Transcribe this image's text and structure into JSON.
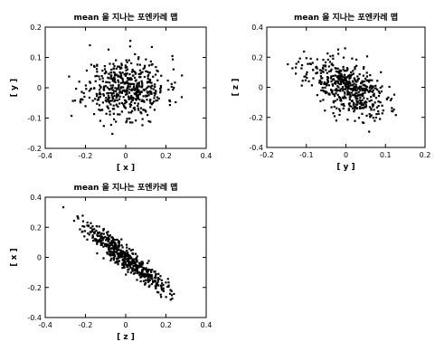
{
  "chart_data": [
    {
      "type": "scatter",
      "title": "mean 을 지나는 포엔카레 맵",
      "xlabel": "[ x ]",
      "ylabel": "[ y ]",
      "xlim": [
        -0.4,
        0.4
      ],
      "ylim": [
        -0.2,
        0.2
      ],
      "xticks": [
        "-0.4",
        "-0.2",
        "0",
        "0.2",
        "0.4"
      ],
      "yticks": [
        "-0.2",
        "-0.1",
        "0",
        "0.1",
        "0.2"
      ],
      "cloud": {
        "count": 520,
        "mean": [
          0.0,
          0.0
        ],
        "sd": [
          0.1,
          0.05
        ],
        "corr": 0.05,
        "seed": 11
      },
      "grid": false,
      "color": "#000000"
    },
    {
      "type": "scatter",
      "title": "mean 을 지나는 포엔카레 맵",
      "xlabel": "[ y ]",
      "ylabel": "[ z ]",
      "xlim": [
        -0.2,
        0.2
      ],
      "ylim": [
        -0.4,
        0.4
      ],
      "xticks": [
        "-0.2",
        "-0.1",
        "0",
        "0.1",
        "0.2"
      ],
      "yticks": [
        "-0.4",
        "-0.2",
        "0",
        "0.2",
        "0.4"
      ],
      "cloud": {
        "count": 520,
        "mean": [
          0.0,
          0.0
        ],
        "sd": [
          0.05,
          0.1
        ],
        "corr": -0.55,
        "seed": 23
      },
      "grid": false,
      "color": "#000000"
    },
    {
      "type": "scatter",
      "title": "mean 을 지나는 포엔카레 맵",
      "xlabel": "[ z ]",
      "ylabel": "[ x ]",
      "xlim": [
        -0.4,
        0.4
      ],
      "ylim": [
        -0.4,
        0.4
      ],
      "xticks": [
        "-0.4",
        "-0.2",
        "0",
        "0.2",
        "0.4"
      ],
      "yticks": [
        "-0.4",
        "-0.2",
        "0",
        "0.2",
        "0.4"
      ],
      "cloud": {
        "count": 520,
        "mean": [
          0.0,
          0.0
        ],
        "sd": [
          0.1,
          0.11
        ],
        "corr": -0.93,
        "seed": 37
      },
      "grid": false,
      "color": "#000000"
    }
  ]
}
